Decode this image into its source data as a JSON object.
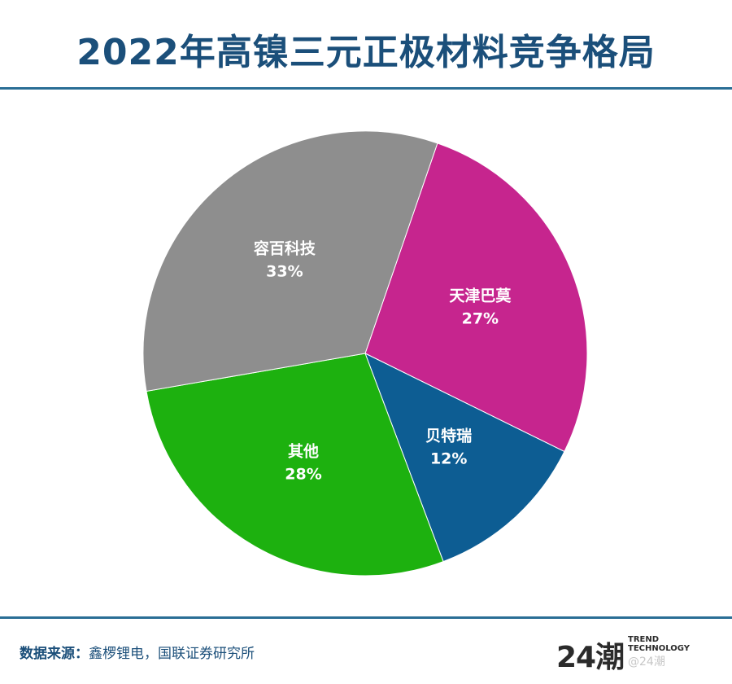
{
  "header": {
    "title": "2022年高镍三元正极材料竞争格局"
  },
  "chart_data": {
    "type": "pie",
    "title": "2022年高镍三元正极材料竞争格局",
    "slices": [
      {
        "label": "天津巴莫",
        "value": 27,
        "value_label": "27%",
        "color": "#c6258e"
      },
      {
        "label": "贝特瑞",
        "value": 12,
        "value_label": "12%",
        "color": "#0d5d93"
      },
      {
        "label": "其他",
        "value": 28,
        "value_label": "28%",
        "color": "#1db10f"
      },
      {
        "label": "容百科技",
        "value": 33,
        "value_label": "33%",
        "color": "#8e8e8e"
      }
    ],
    "legend": "none"
  },
  "footer": {
    "source_label": "数据来源：",
    "source_text": "鑫椤锂电，国联证券研究所",
    "brand_mark": "24潮",
    "brand_line1": "TREND",
    "brand_line2": "TECHNOLOGY",
    "brand_handle": "@24潮"
  },
  "colors": {
    "title": "#1b4f7a",
    "rule": "#2a6e95"
  }
}
